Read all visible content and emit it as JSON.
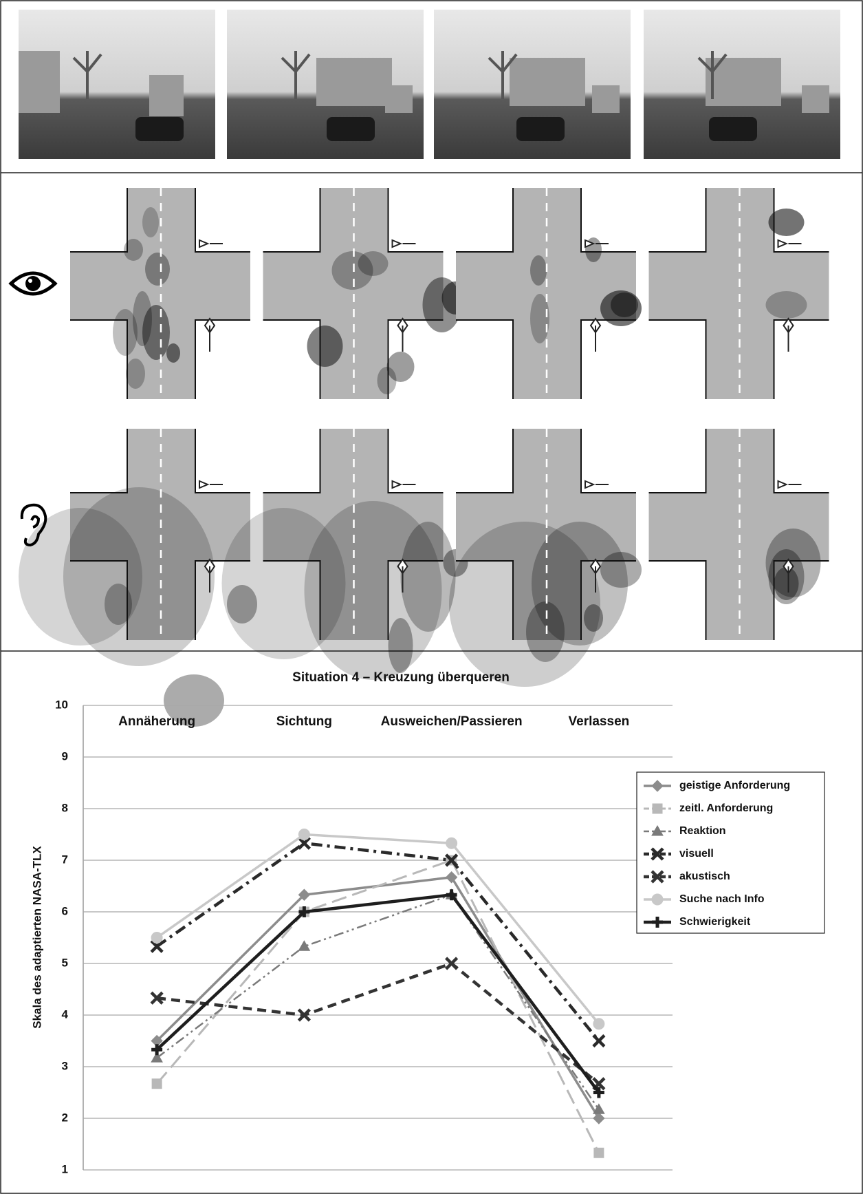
{
  "chart_data": {
    "type": "line",
    "title": "Situation 4 – Kreuzung überqueren",
    "y_label": "Skala des adaptierten NASA-TLX",
    "categories": [
      "Annäherung",
      "Sichtung",
      "Ausweichen/Passieren",
      "Verlassen"
    ],
    "ylim": [
      1,
      10
    ],
    "yticks": [
      1,
      2,
      3,
      4,
      5,
      6,
      7,
      8,
      9,
      10
    ],
    "grid": true,
    "legend": "right",
    "series": [
      {
        "name": "geistige Anforderung",
        "color": "#8c8c8c",
        "marker": "diamond",
        "dash": "solid",
        "values": [
          3.5,
          6.33,
          6.67,
          2.0
        ]
      },
      {
        "name": "zeitl. Anforderung",
        "color": "#b8b8b8",
        "marker": "square",
        "dash": "long",
        "values": [
          2.67,
          6.0,
          7.0,
          1.33
        ]
      },
      {
        "name": "Reaktion",
        "color": "#7a7a7a",
        "marker": "triangle",
        "dash": "dashdotdot",
        "values": [
          3.17,
          5.33,
          6.33,
          2.17
        ]
      },
      {
        "name": "visuell",
        "color": "#2a2a2a",
        "marker": "x",
        "dash": "dashdot",
        "values": [
          5.33,
          7.33,
          7.0,
          3.5
        ]
      },
      {
        "name": "akustisch",
        "color": "#333333",
        "marker": "x",
        "dash": "dashed",
        "values": [
          4.33,
          4.0,
          5.0,
          2.67
        ]
      },
      {
        "name": "Suche nach Info",
        "color": "#c8c8c8",
        "marker": "circle",
        "dash": "solid",
        "values": [
          5.5,
          7.5,
          7.33,
          3.83
        ]
      },
      {
        "name": "Schwierigkeit",
        "color": "#1e1e1e",
        "marker": "plus",
        "dash": "thick",
        "values": [
          3.33,
          6.0,
          6.33,
          2.5
        ]
      }
    ]
  }
}
